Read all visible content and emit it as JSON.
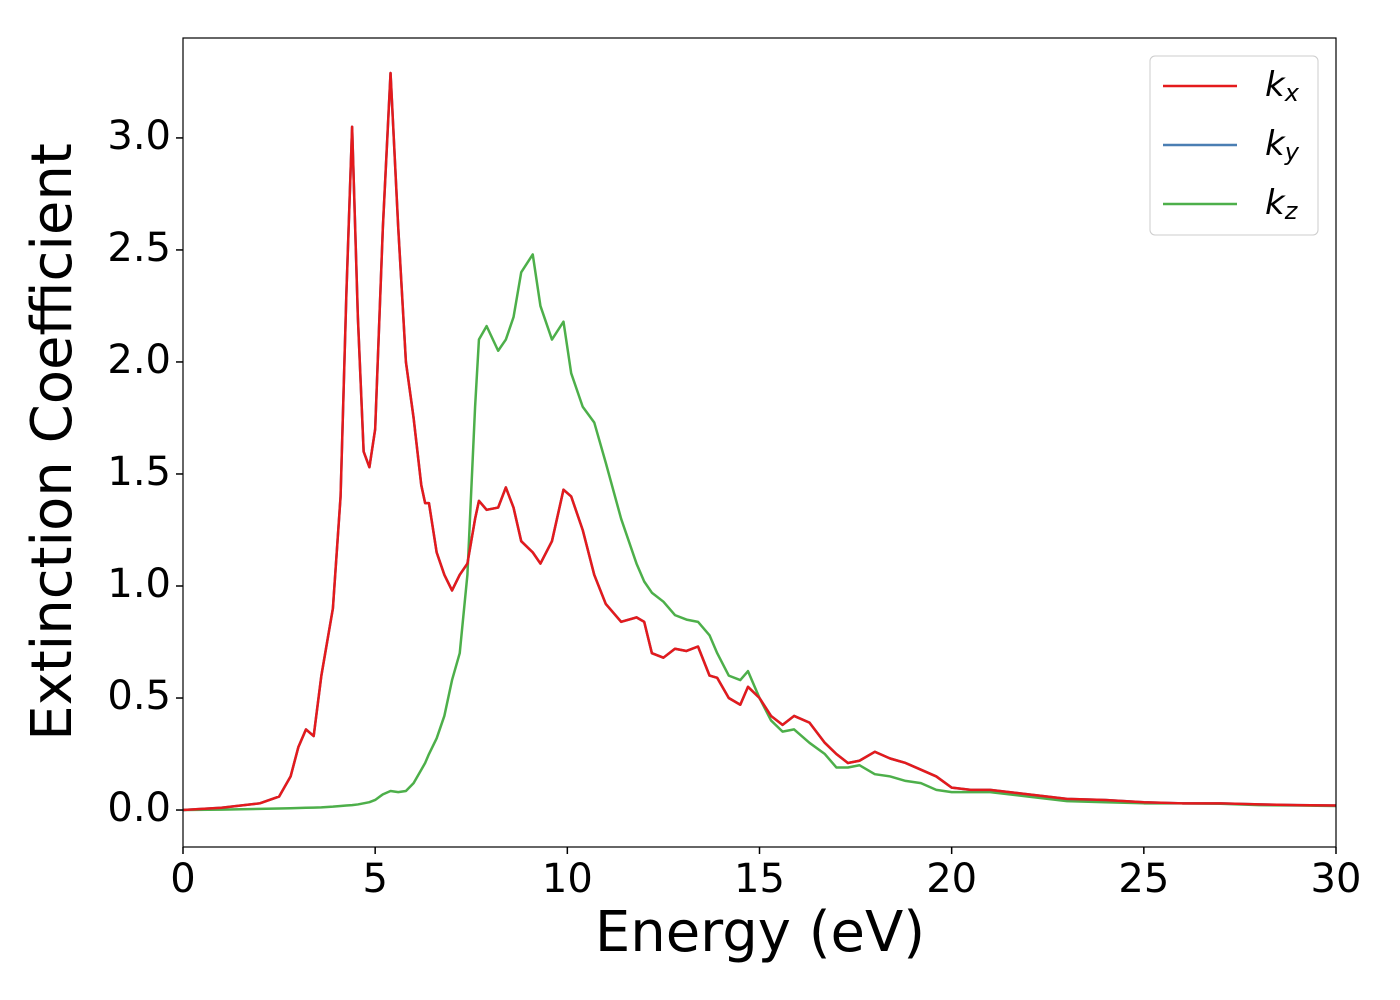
{
  "chart_data": {
    "type": "line",
    "xlabel": "Energy (eV)",
    "ylabel": "Extinction Coefficient",
    "xlim": [
      0,
      30
    ],
    "ylim": [
      -0.165,
      3.446
    ],
    "xticks": [
      0,
      5,
      10,
      15,
      20,
      25,
      30
    ],
    "yticks": [
      {
        "value": 0,
        "label": "0.0"
      },
      {
        "value": 0.5,
        "label": "0.5"
      },
      {
        "value": 1,
        "label": "1.0"
      },
      {
        "value": 1.5,
        "label": "1.5"
      },
      {
        "value": 2,
        "label": "2.0"
      },
      {
        "value": 2.5,
        "label": "2.5"
      },
      {
        "value": 3,
        "label": "3.0"
      }
    ],
    "legend": "upper right",
    "x": [
      0,
      1,
      2,
      2.5,
      2.8,
      3.0,
      3.2,
      3.4,
      3.6,
      3.9,
      4.1,
      4.25,
      4.4,
      4.55,
      4.7,
      4.85,
      5.0,
      5.2,
      5.4,
      5.6,
      5.8,
      6.0,
      6.2,
      6.3,
      6.4,
      6.6,
      6.8,
      7.0,
      7.2,
      7.4,
      7.6,
      7.7,
      7.9,
      8.2,
      8.4,
      8.6,
      8.8,
      9.1,
      9.3,
      9.6,
      9.9,
      10.1,
      10.4,
      10.7,
      11.0,
      11.4,
      11.8,
      12.0,
      12.2,
      12.5,
      12.8,
      13.1,
      13.4,
      13.7,
      13.9,
      14.2,
      14.5,
      14.7,
      15.0,
      15.3,
      15.6,
      15.9,
      16.3,
      16.7,
      17.0,
      17.3,
      17.6,
      18.0,
      18.4,
      18.8,
      19.2,
      19.6,
      20.0,
      20.5,
      21.0,
      22,
      23,
      24,
      25,
      26,
      27,
      28,
      29,
      30
    ],
    "series": [
      {
        "name": "kx",
        "color": "#e41a1c",
        "values": [
          0,
          0.01,
          0.03,
          0.06,
          0.15,
          0.28,
          0.36,
          0.33,
          0.6,
          0.9,
          1.4,
          2.3,
          3.05,
          2.2,
          1.6,
          1.53,
          1.7,
          2.6,
          3.29,
          2.6,
          2.0,
          1.75,
          1.45,
          1.37,
          1.37,
          1.15,
          1.05,
          0.98,
          1.05,
          1.1,
          1.3,
          1.38,
          1.34,
          1.35,
          1.44,
          1.35,
          1.2,
          1.15,
          1.1,
          1.2,
          1.43,
          1.4,
          1.25,
          1.05,
          0.92,
          0.84,
          0.86,
          0.84,
          0.7,
          0.68,
          0.72,
          0.71,
          0.73,
          0.6,
          0.59,
          0.5,
          0.47,
          0.55,
          0.5,
          0.42,
          0.38,
          0.42,
          0.39,
          0.3,
          0.25,
          0.21,
          0.22,
          0.26,
          0.23,
          0.21,
          0.18,
          0.15,
          0.1,
          0.09,
          0.09,
          0.07,
          0.05,
          0.045,
          0.035,
          0.03,
          0.03,
          0.025,
          0.022,
          0.02
        ]
      },
      {
        "name": "ky",
        "color": "#4a7eb3",
        "values": [
          0,
          0.01,
          0.03,
          0.06,
          0.15,
          0.28,
          0.36,
          0.33,
          0.6,
          0.9,
          1.4,
          2.3,
          3.05,
          2.2,
          1.6,
          1.53,
          1.7,
          2.6,
          3.29,
          2.6,
          2.0,
          1.75,
          1.45,
          1.37,
          1.37,
          1.15,
          1.05,
          0.98,
          1.05,
          1.1,
          1.3,
          1.38,
          1.34,
          1.35,
          1.44,
          1.35,
          1.2,
          1.15,
          1.1,
          1.2,
          1.43,
          1.4,
          1.25,
          1.05,
          0.92,
          0.84,
          0.86,
          0.84,
          0.7,
          0.68,
          0.72,
          0.71,
          0.73,
          0.6,
          0.59,
          0.5,
          0.47,
          0.55,
          0.5,
          0.42,
          0.38,
          0.42,
          0.39,
          0.3,
          0.25,
          0.21,
          0.22,
          0.26,
          0.23,
          0.21,
          0.18,
          0.15,
          0.1,
          0.09,
          0.09,
          0.07,
          0.05,
          0.045,
          0.035,
          0.03,
          0.03,
          0.025,
          0.022,
          0.02
        ]
      },
      {
        "name": "kz",
        "color": "#4daf4a",
        "values": [
          0,
          0.002,
          0.005,
          0.007,
          0.008,
          0.009,
          0.01,
          0.011,
          0.012,
          0.015,
          0.018,
          0.02,
          0.022,
          0.025,
          0.03,
          0.035,
          0.045,
          0.07,
          0.085,
          0.08,
          0.085,
          0.12,
          0.18,
          0.21,
          0.25,
          0.32,
          0.42,
          0.58,
          0.7,
          1.05,
          1.8,
          2.1,
          2.16,
          2.05,
          2.1,
          2.2,
          2.4,
          2.48,
          2.25,
          2.1,
          2.18,
          1.95,
          1.8,
          1.73,
          1.55,
          1.3,
          1.1,
          1.02,
          0.97,
          0.93,
          0.87,
          0.85,
          0.84,
          0.78,
          0.7,
          0.6,
          0.58,
          0.62,
          0.5,
          0.4,
          0.35,
          0.36,
          0.3,
          0.25,
          0.19,
          0.19,
          0.2,
          0.16,
          0.15,
          0.13,
          0.12,
          0.09,
          0.08,
          0.08,
          0.08,
          0.06,
          0.04,
          0.035,
          0.03,
          0.03,
          0.028,
          0.022,
          0.02,
          0.018
        ]
      }
    ]
  }
}
